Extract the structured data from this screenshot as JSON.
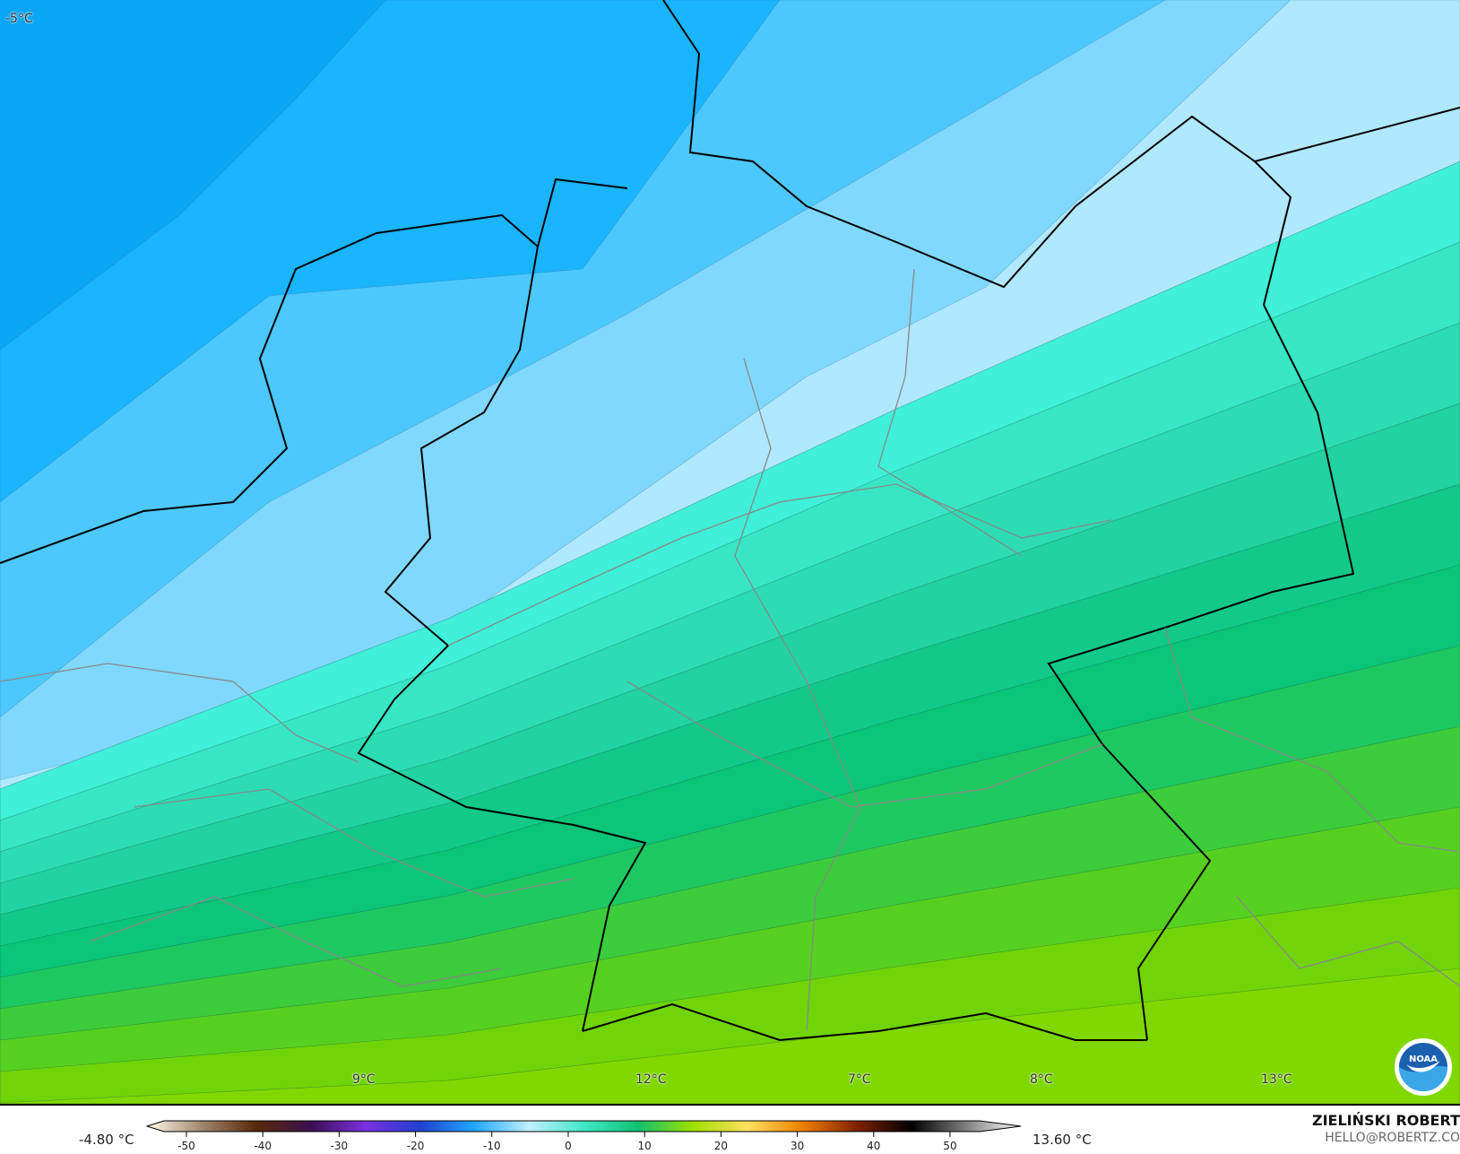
{
  "map": {
    "corner_label": "-5°C",
    "point_labels": [
      {
        "text": "9°C"
      },
      {
        "text": "12°C"
      },
      {
        "text": "7°C"
      },
      {
        "text": "8°C"
      },
      {
        "text": "13°C"
      }
    ],
    "band_colors": [
      "#0aa6f5",
      "#1ab4ff",
      "#4cc8ff",
      "#80d8ff",
      "#b0e8ff",
      "#40f0d8",
      "#38e6c6",
      "#2ddcb4",
      "#22d2a0",
      "#12c98a",
      "#0ac478",
      "#1ec860",
      "#3ccc3c",
      "#56d020",
      "#70d408",
      "#80d800"
    ]
  },
  "colorbar": {
    "min_label": "-4.80 °C",
    "max_label": "13.60 °C",
    "ticks": [
      "-50",
      "-40",
      "-30",
      "-20",
      "-10",
      "0",
      "10",
      "20",
      "30",
      "40",
      "50"
    ],
    "stops": [
      "#fffbe8",
      "#a08770",
      "#5a2808",
      "#3a1050",
      "#7a30e0",
      "#2040d0",
      "#20a8ff",
      "#c0f0ff",
      "#40e8c8",
      "#10c070",
      "#a0e000",
      "#ffe060",
      "#f08000",
      "#802000",
      "#000000",
      "#808080",
      "#ffffff"
    ]
  },
  "author": {
    "name": "ZIELIŃSKI ROBERT",
    "email": "HELLO@ROBERTZ.CO"
  },
  "logo": {
    "text": "NOAA"
  }
}
